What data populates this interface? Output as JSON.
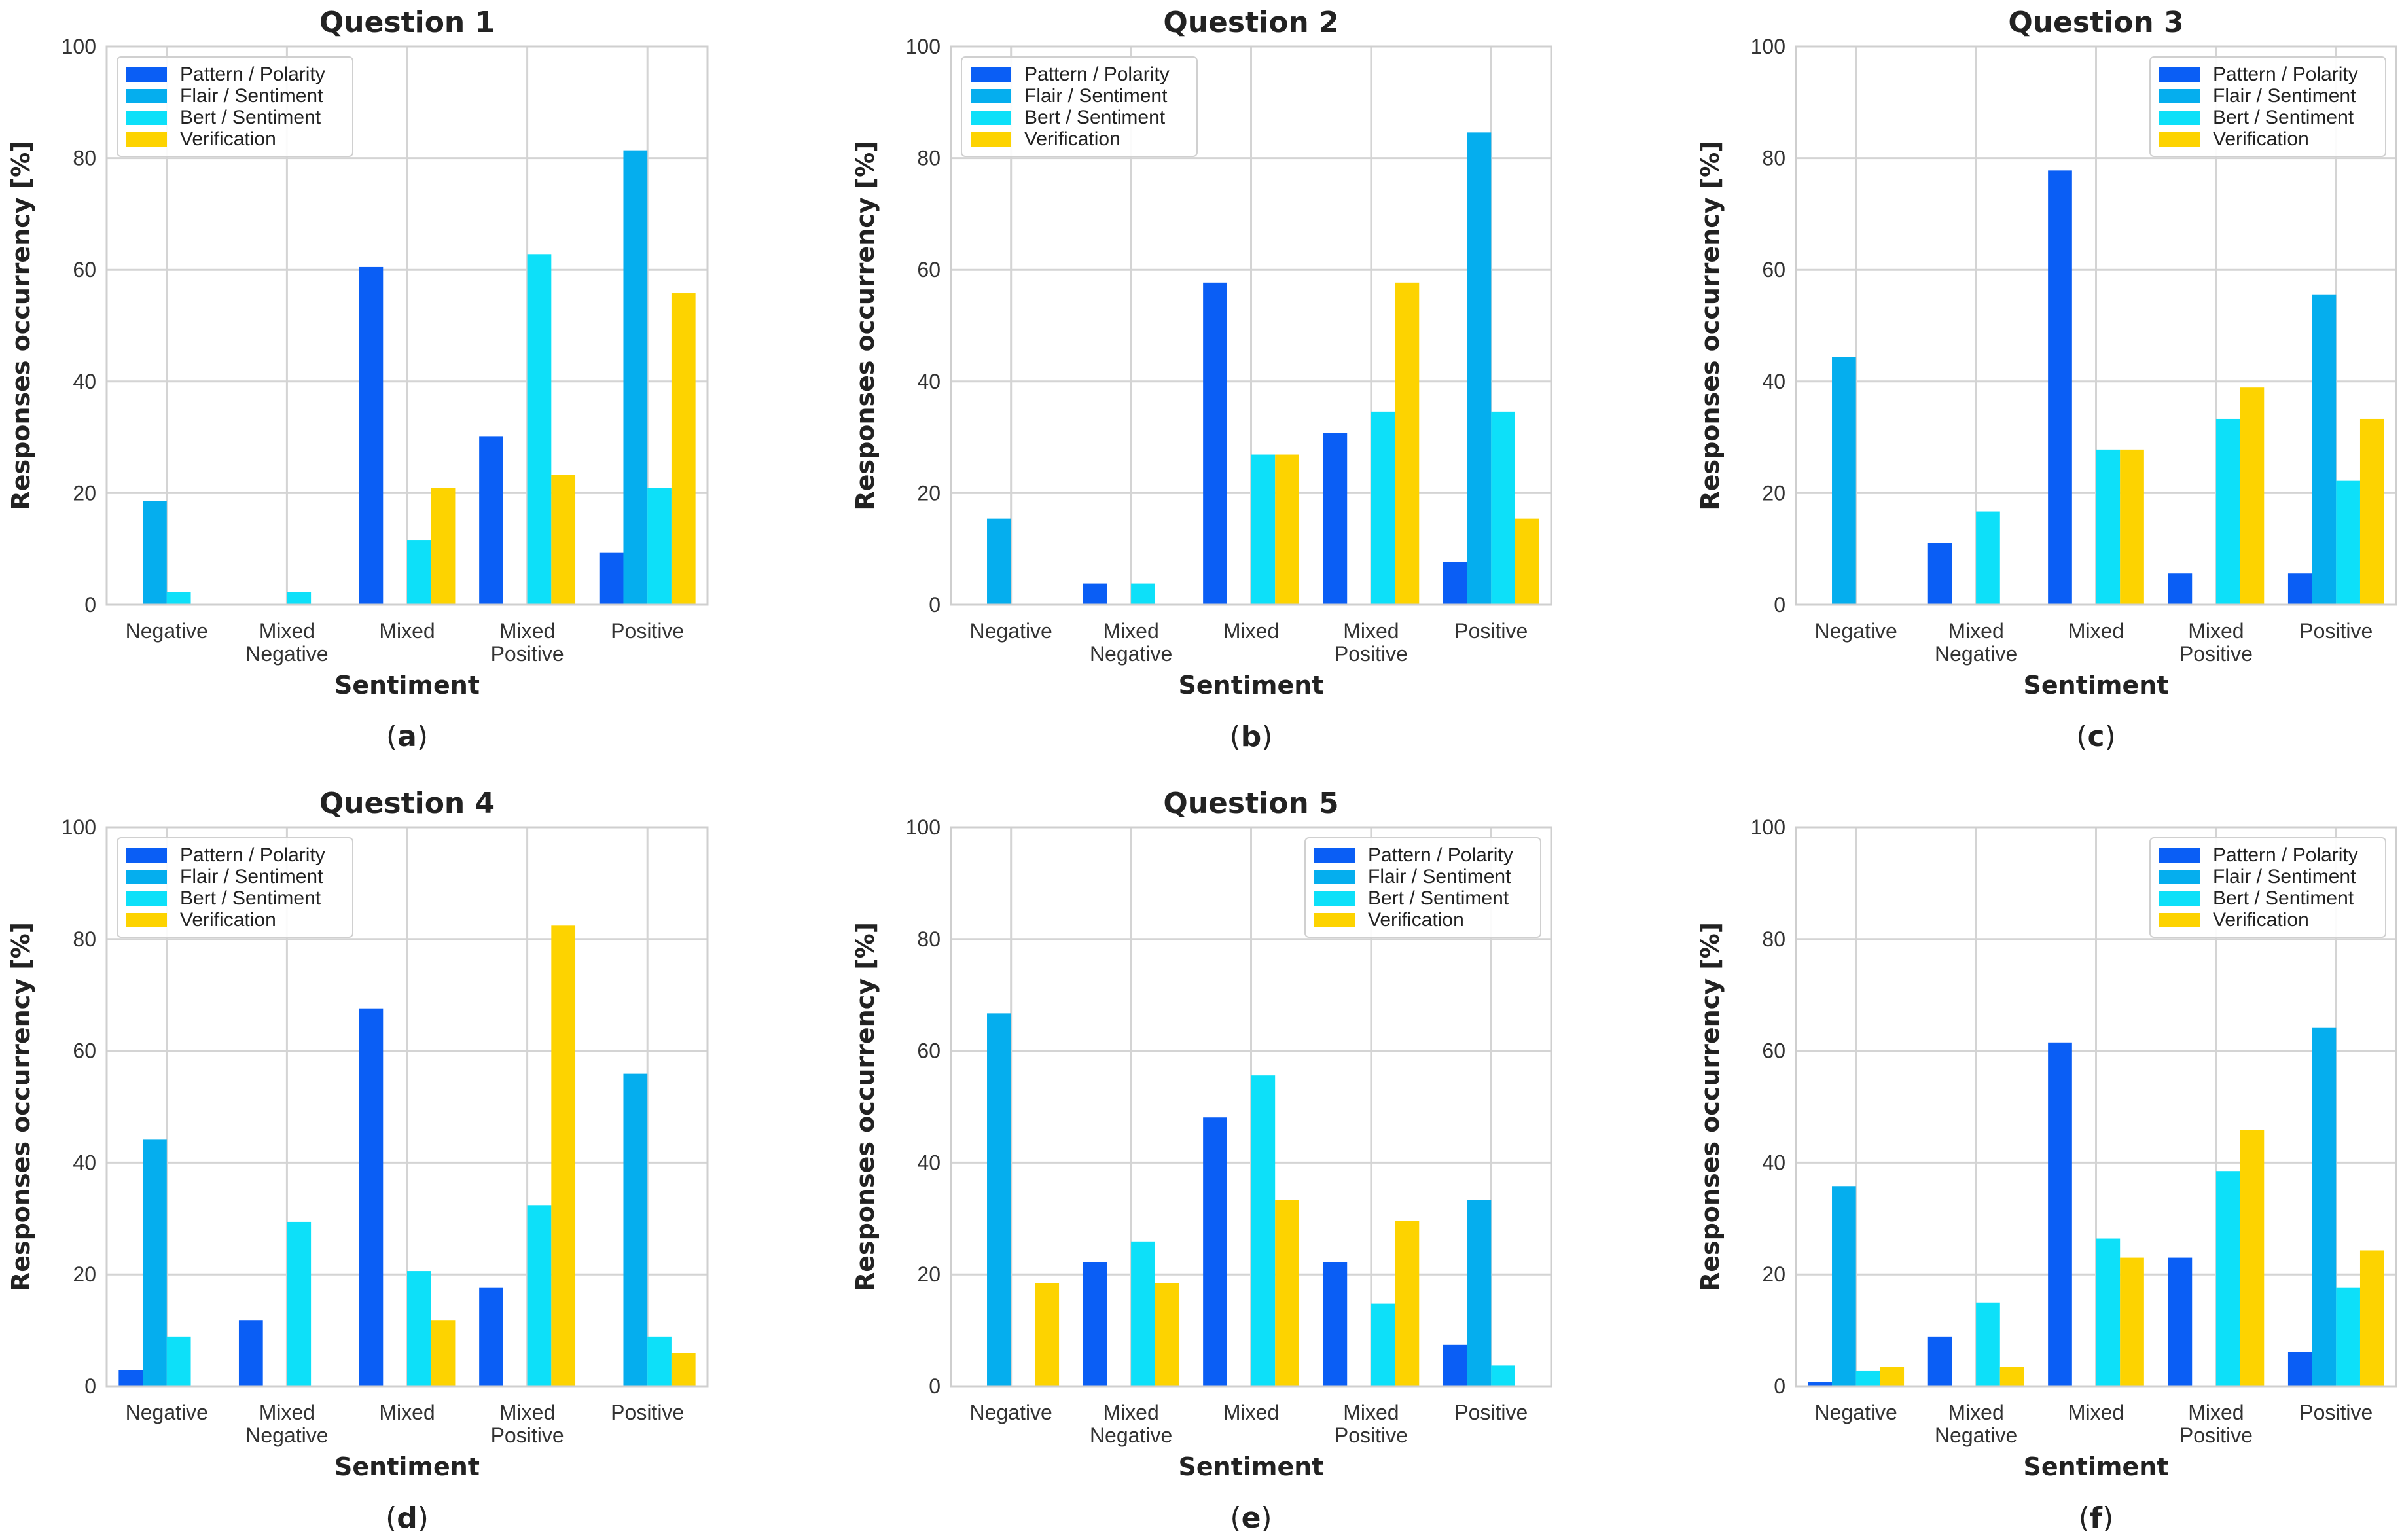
{
  "chart_data": [
    {
      "type": "bar",
      "title": "Question 1",
      "caption": "a",
      "xlabel": "Sentiment",
      "ylabel": "Responses occurrency [%]",
      "ylim": [
        0,
        100
      ],
      "yticks": [
        "0",
        "20",
        "40",
        "60",
        "80",
        "100"
      ],
      "categories": [
        [
          "Negative"
        ],
        [
          "Mixed",
          "Negative"
        ],
        [
          "Mixed"
        ],
        [
          "Mixed",
          "Positive"
        ],
        [
          "Positive"
        ]
      ],
      "legend_loc": "upper-left",
      "series": [
        {
          "name": "Pattern / Polarity",
          "color": "#0a5ef5",
          "values": [
            0,
            0,
            60.5,
            30.2,
            9.3
          ]
        },
        {
          "name": "Flair / Sentiment",
          "color": "#05aeee",
          "values": [
            18.6,
            0,
            0,
            0,
            81.4
          ]
        },
        {
          "name": "Bert / Sentiment",
          "color": "#0de0f9",
          "values": [
            2.3,
            2.3,
            11.6,
            62.8,
            20.9
          ]
        },
        {
          "name": "Verification",
          "color": "#fdd300",
          "values": [
            0,
            0,
            20.9,
            23.3,
            55.8
          ]
        }
      ]
    },
    {
      "type": "bar",
      "title": "Question 2",
      "caption": "b",
      "xlabel": "Sentiment",
      "ylabel": "Responses occurrency [%]",
      "ylim": [
        0,
        100
      ],
      "yticks": [
        "0",
        "20",
        "40",
        "60",
        "80",
        "100"
      ],
      "categories": [
        [
          "Negative"
        ],
        [
          "Mixed",
          "Negative"
        ],
        [
          "Mixed"
        ],
        [
          "Mixed",
          "Positive"
        ],
        [
          "Positive"
        ]
      ],
      "legend_loc": "upper-left",
      "series": [
        {
          "name": "Pattern / Polarity",
          "color": "#0a5ef5",
          "values": [
            0,
            3.8,
            57.7,
            30.8,
            7.7
          ]
        },
        {
          "name": "Flair / Sentiment",
          "color": "#05aeee",
          "values": [
            15.4,
            0,
            0,
            0,
            84.6
          ]
        },
        {
          "name": "Bert / Sentiment",
          "color": "#0de0f9",
          "values": [
            0,
            3.8,
            26.9,
            34.6,
            34.6
          ]
        },
        {
          "name": "Verification",
          "color": "#fdd300",
          "values": [
            0,
            0,
            26.9,
            57.7,
            15.4
          ]
        }
      ]
    },
    {
      "type": "bar",
      "title": "Question 3",
      "caption": "c",
      "xlabel": "Sentiment",
      "ylabel": "Responses occurrency [%]",
      "ylim": [
        0,
        100
      ],
      "yticks": [
        "0",
        "20",
        "40",
        "60",
        "80",
        "100"
      ],
      "categories": [
        [
          "Negative"
        ],
        [
          "Mixed",
          "Negative"
        ],
        [
          "Mixed"
        ],
        [
          "Mixed",
          "Positive"
        ],
        [
          "Positive"
        ]
      ],
      "legend_loc": "upper-right",
      "series": [
        {
          "name": "Pattern / Polarity",
          "color": "#0a5ef5",
          "values": [
            0,
            11.1,
            77.8,
            5.6,
            5.6
          ]
        },
        {
          "name": "Flair / Sentiment",
          "color": "#05aeee",
          "values": [
            44.4,
            0,
            0,
            0,
            55.6
          ]
        },
        {
          "name": "Bert / Sentiment",
          "color": "#0de0f9",
          "values": [
            0,
            16.7,
            27.8,
            33.3,
            22.2
          ]
        },
        {
          "name": "Verification",
          "color": "#fdd300",
          "values": [
            0,
            0,
            27.8,
            38.9,
            33.3
          ]
        }
      ]
    },
    {
      "type": "bar",
      "title": "Question 4",
      "caption": "d",
      "xlabel": "Sentiment",
      "ylabel": "Responses occurrency [%]",
      "ylim": [
        0,
        100
      ],
      "yticks": [
        "0",
        "20",
        "40",
        "60",
        "80",
        "100"
      ],
      "categories": [
        [
          "Negative"
        ],
        [
          "Mixed",
          "Negative"
        ],
        [
          "Mixed"
        ],
        [
          "Mixed",
          "Positive"
        ],
        [
          "Positive"
        ]
      ],
      "legend_loc": "upper-left",
      "series": [
        {
          "name": "Pattern / Polarity",
          "color": "#0a5ef5",
          "values": [
            2.9,
            11.8,
            67.6,
            17.6,
            0
          ]
        },
        {
          "name": "Flair / Sentiment",
          "color": "#05aeee",
          "values": [
            44.1,
            0,
            0,
            0,
            55.9
          ]
        },
        {
          "name": "Bert / Sentiment",
          "color": "#0de0f9",
          "values": [
            8.8,
            29.4,
            20.6,
            32.4,
            8.8
          ]
        },
        {
          "name": "Verification",
          "color": "#fdd300",
          "values": [
            0,
            0,
            11.8,
            82.4,
            5.9
          ]
        }
      ]
    },
    {
      "type": "bar",
      "title": "Question 5",
      "caption": "e",
      "xlabel": "Sentiment",
      "ylabel": "Responses occurrency [%]",
      "ylim": [
        0,
        100
      ],
      "yticks": [
        "0",
        "20",
        "40",
        "60",
        "80",
        "100"
      ],
      "categories": [
        [
          "Negative"
        ],
        [
          "Mixed",
          "Negative"
        ],
        [
          "Mixed"
        ],
        [
          "Mixed",
          "Positive"
        ],
        [
          "Positive"
        ]
      ],
      "legend_loc": "upper-right",
      "series": [
        {
          "name": "Pattern / Polarity",
          "color": "#0a5ef5",
          "values": [
            0,
            22.2,
            48.1,
            22.2,
            7.4
          ]
        },
        {
          "name": "Flair / Sentiment",
          "color": "#05aeee",
          "values": [
            66.7,
            0,
            0,
            0,
            33.3
          ]
        },
        {
          "name": "Bert / Sentiment",
          "color": "#0de0f9",
          "values": [
            0,
            25.9,
            55.6,
            14.8,
            3.7
          ]
        },
        {
          "name": "Verification",
          "color": "#fdd300",
          "values": [
            18.5,
            18.5,
            33.3,
            29.6,
            0
          ]
        }
      ]
    },
    {
      "type": "bar",
      "title": "",
      "caption": "f",
      "xlabel": "Sentiment",
      "ylabel": "Responses occurrency [%]",
      "ylim": [
        0,
        100
      ],
      "yticks": [
        "0",
        "20",
        "40",
        "60",
        "80",
        "100"
      ],
      "categories": [
        [
          "Negative"
        ],
        [
          "Mixed",
          "Negative"
        ],
        [
          "Mixed"
        ],
        [
          "Mixed",
          "Positive"
        ],
        [
          "Positive"
        ]
      ],
      "legend_loc": "upper-right",
      "series": [
        {
          "name": "Pattern / Polarity",
          "color": "#0a5ef5",
          "values": [
            0.7,
            8.8,
            61.5,
            23.0,
            6.1
          ]
        },
        {
          "name": "Flair / Sentiment",
          "color": "#05aeee",
          "values": [
            35.8,
            0,
            0,
            0,
            64.2
          ]
        },
        {
          "name": "Bert / Sentiment",
          "color": "#0de0f9",
          "values": [
            2.7,
            14.9,
            26.4,
            38.5,
            17.6
          ]
        },
        {
          "name": "Verification",
          "color": "#fdd300",
          "values": [
            3.4,
            3.4,
            23.0,
            45.9,
            24.3
          ]
        }
      ]
    }
  ]
}
